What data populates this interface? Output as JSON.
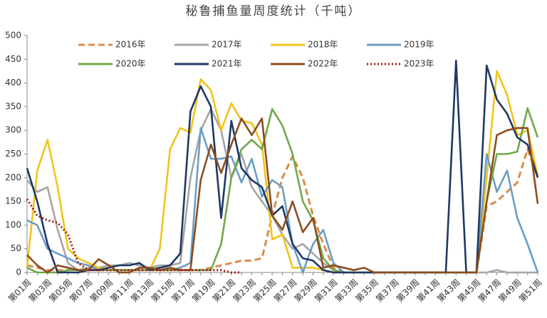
{
  "chart_data": {
    "type": "line",
    "title": "秘鲁捕鱼量周度统计（千吨）",
    "categories": [
      "第01周",
      null,
      "第03周",
      null,
      "第05周",
      null,
      "第07周",
      null,
      "第09周",
      null,
      "第11周",
      null,
      "第13周",
      null,
      "第15周",
      null,
      "第17周",
      null,
      "第19周",
      null,
      "第21周",
      null,
      "第23周",
      null,
      "第25周",
      null,
      "第27周",
      null,
      "第29周",
      null,
      "第31周",
      null,
      "第33周",
      null,
      "第35周",
      null,
      "第37周",
      null,
      "第39周",
      null,
      "第41周",
      null,
      "第43周",
      null,
      "第45周",
      null,
      "第47周",
      null,
      "第49周",
      null,
      "第51周"
    ],
    "ylim": [
      0,
      500
    ],
    "yticks": [
      0,
      50,
      100,
      150,
      200,
      250,
      300,
      350,
      400,
      450,
      500
    ],
    "grid": false,
    "legend": "top",
    "series": [
      {
        "name": "2016年",
        "color": "#d98c4a",
        "dash": "dashed",
        "values": [
          15,
          10,
          5,
          5,
          5,
          5,
          5,
          5,
          5,
          5,
          5,
          5,
          5,
          5,
          5,
          5,
          5,
          5,
          10,
          15,
          20,
          25,
          25,
          30,
          120,
          200,
          245,
          200,
          120,
          60,
          10,
          0,
          0,
          0,
          0,
          0,
          0,
          0,
          0,
          0,
          0,
          0,
          0,
          0,
          0,
          140,
          150,
          170,
          190,
          260,
          200
        ]
      },
      {
        "name": "2017年",
        "color": "#a5a5a5",
        "dash": "solid",
        "values": [
          195,
          170,
          180,
          90,
          20,
          5,
          10,
          10,
          15,
          15,
          20,
          15,
          10,
          15,
          15,
          20,
          200,
          300,
          345,
          300,
          200,
          250,
          180,
          150,
          120,
          80,
          50,
          60,
          40,
          20,
          5,
          0,
          0,
          0,
          0,
          0,
          0,
          0,
          0,
          0,
          0,
          0,
          0,
          0,
          0,
          0,
          5,
          0,
          0,
          0,
          0
        ]
      },
      {
        "name": "2018年",
        "color": "#f0c419",
        "dash": "solid",
        "values": [
          10,
          215,
          280,
          180,
          50,
          30,
          20,
          10,
          5,
          5,
          5,
          5,
          5,
          50,
          260,
          305,
          295,
          408,
          385,
          300,
          357,
          320,
          315,
          270,
          70,
          80,
          10,
          10,
          10,
          5,
          0,
          0,
          0,
          0,
          0,
          0,
          0,
          0,
          0,
          0,
          0,
          0,
          0,
          0,
          0,
          200,
          425,
          375,
          290,
          300,
          205
        ]
      },
      {
        "name": "2019年",
        "color": "#6a9ec6",
        "dash": "solid",
        "values": [
          110,
          100,
          50,
          40,
          30,
          20,
          15,
          5,
          5,
          5,
          5,
          5,
          5,
          5,
          5,
          10,
          20,
          305,
          240,
          240,
          245,
          190,
          240,
          160,
          195,
          180,
          60,
          0,
          60,
          90,
          20,
          0,
          0,
          0,
          0,
          0,
          0,
          0,
          0,
          0,
          0,
          0,
          0,
          0,
          0,
          250,
          170,
          215,
          115,
          60,
          0
        ]
      },
      {
        "name": "2020年",
        "color": "#70a84a",
        "dash": "solid",
        "values": [
          10,
          0,
          0,
          0,
          5,
          5,
          5,
          5,
          5,
          5,
          5,
          5,
          5,
          5,
          5,
          5,
          5,
          5,
          5,
          60,
          200,
          260,
          280,
          260,
          345,
          310,
          250,
          150,
          110,
          30,
          5,
          0,
          0,
          0,
          0,
          0,
          0,
          0,
          0,
          0,
          0,
          0,
          0,
          0,
          0,
          150,
          250,
          250,
          255,
          347,
          285
        ]
      },
      {
        "name": "2021年",
        "color": "#1f3864",
        "dash": "solid",
        "values": [
          220,
          150,
          60,
          0,
          0,
          0,
          5,
          5,
          10,
          15,
          15,
          20,
          5,
          10,
          15,
          40,
          340,
          393,
          350,
          115,
          320,
          220,
          195,
          180,
          120,
          140,
          60,
          30,
          25,
          5,
          0,
          0,
          0,
          0,
          0,
          0,
          0,
          0,
          0,
          0,
          0,
          0,
          447,
          0,
          0,
          437,
          365,
          335,
          285,
          270,
          200
        ]
      },
      {
        "name": "2022年",
        "color": "#8b4e1f",
        "dash": "solid",
        "values": [
          37,
          15,
          0,
          15,
          10,
          5,
          5,
          28,
          15,
          0,
          0,
          10,
          10,
          5,
          10,
          5,
          5,
          195,
          270,
          210,
          270,
          325,
          290,
          325,
          120,
          90,
          150,
          85,
          115,
          10,
          15,
          10,
          5,
          10,
          0,
          0,
          0,
          0,
          0,
          0,
          0,
          0,
          0,
          0,
          0,
          150,
          290,
          300,
          305,
          305,
          145
        ]
      },
      {
        "name": "2023年",
        "color": "#a01818",
        "dash": "dotted",
        "values": [
          155,
          120,
          110,
          105,
          80,
          20,
          5,
          5,
          5,
          5,
          5,
          5,
          5,
          5,
          5,
          5,
          5,
          5,
          5,
          5,
          0,
          0,
          null,
          null,
          null,
          null,
          null,
          null,
          null,
          null,
          null,
          null,
          null,
          null,
          null,
          null,
          null,
          null,
          null,
          null,
          null,
          null,
          null,
          null,
          null,
          null,
          null,
          null,
          null,
          null,
          null
        ]
      }
    ]
  }
}
